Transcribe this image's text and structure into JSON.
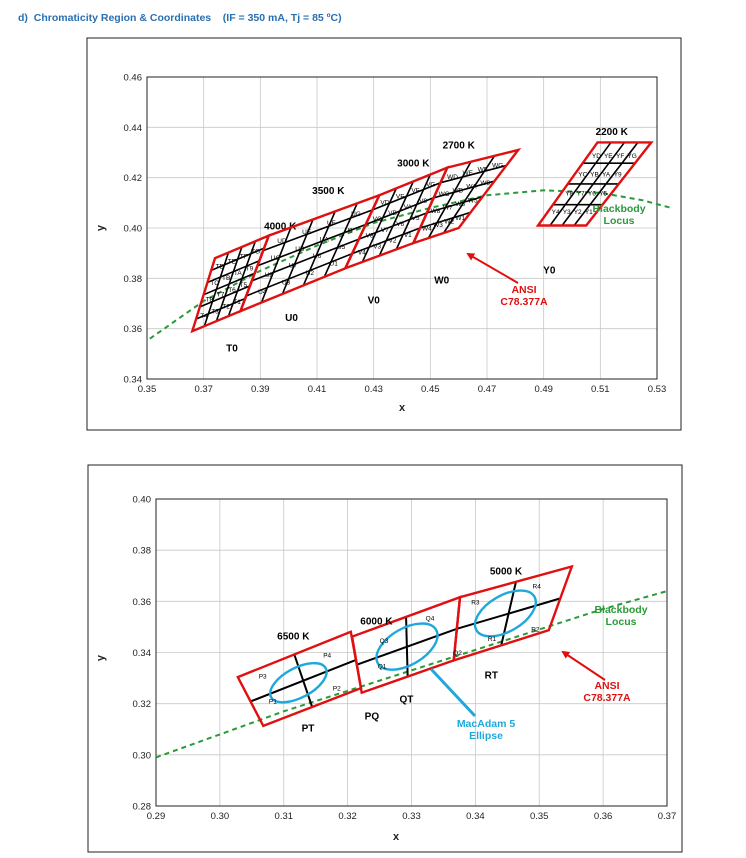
{
  "heading": {
    "prefix": "d)",
    "title": "Chromaticity Region & Coordinates",
    "conditions": "(IF = 350 mA, Tj = 85 ºC)"
  },
  "colors": {
    "bin_outline": "#e01010",
    "grid_lines": "#000000",
    "blackbody": "#2a9a38",
    "ellipse": "#1fa8dc",
    "arrow": "#e01010"
  },
  "chart_data": [
    {
      "type": "scatter",
      "xlabel": "x",
      "ylabel": "y",
      "xlim": [
        0.35,
        0.53
      ],
      "ylim": [
        0.34,
        0.46
      ],
      "xticks": [
        "0.35",
        "0.37",
        "0.39",
        "0.41",
        "0.43",
        "0.45",
        "0.47",
        "0.49",
        "0.51",
        "0.53"
      ],
      "yticks": [
        "0.34",
        "0.36",
        "0.38",
        "0.40",
        "0.42",
        "0.44",
        "0.46"
      ],
      "grid": true,
      "blackbody_locus": {
        "label": "Blackbody Locus",
        "line1": "Blackbody",
        "line2": "Locus",
        "points": [
          [
            0.351,
            0.356
          ],
          [
            0.37,
            0.371
          ],
          [
            0.39,
            0.383
          ],
          [
            0.41,
            0.393
          ],
          [
            0.43,
            0.402
          ],
          [
            0.45,
            0.408
          ],
          [
            0.47,
            0.413
          ],
          [
            0.49,
            0.415
          ],
          [
            0.51,
            0.414
          ],
          [
            0.525,
            0.411
          ],
          [
            0.535,
            0.408
          ]
        ]
      },
      "bins": [
        {
          "cct": "4000 K",
          "label_at": [
            0.397,
            0.3995
          ],
          "corners": [
            [
              0.366,
              0.359
            ],
            [
              0.383,
              0.367
            ],
            [
              0.393,
              0.397
            ],
            [
              0.374,
              0.388
            ]
          ],
          "rows": 6,
          "cols": 4
        },
        {
          "cct": "3500 K",
          "label_at": [
            0.414,
            0.4135
          ],
          "corners": [
            [
              0.383,
              0.367
            ],
            [
              0.42,
              0.384
            ],
            [
              0.432,
              0.413
            ],
            [
              0.393,
              0.397
            ]
          ],
          "rows": 5,
          "cols": 5
        },
        {
          "cct": "3000 K",
          "label_at": [
            0.444,
            0.4245
          ],
          "corners": [
            [
              0.42,
              0.384
            ],
            [
              0.444,
              0.394
            ],
            [
              0.456,
              0.424
            ],
            [
              0.432,
              0.413
            ]
          ],
          "rows": 5,
          "cols": 4
        },
        {
          "cct": "2700 K",
          "label_at": [
            0.46,
            0.4315
          ],
          "corners": [
            [
              0.444,
              0.394
            ],
            [
              0.46,
              0.4
            ],
            [
              0.481,
              0.431
            ],
            [
              0.456,
              0.424
            ]
          ],
          "rows": 5,
          "cols": 3
        },
        {
          "cct": "2200 K",
          "label_at": [
            0.514,
            0.437
          ],
          "corners": [
            [
              0.488,
              0.401
            ],
            [
              0.505,
              0.401
            ],
            [
              0.528,
              0.434
            ],
            [
              0.509,
              0.434
            ]
          ],
          "rows": 4,
          "cols": 4
        }
      ],
      "cell_labels": [
        "TD",
        "TE",
        "TF",
        "TG",
        "TC",
        "TB",
        "TA",
        "T9",
        "T8",
        "T7",
        "T6",
        "T5",
        "T4",
        "T3",
        "T2",
        "T1",
        "UD",
        "UE",
        "UF",
        "UG",
        "UC",
        "UB",
        "UA",
        "U9",
        "U8",
        "U7",
        "U6",
        "U5",
        "U4",
        "U3",
        "U2",
        "U1",
        "VD",
        "VE",
        "VF",
        "VG",
        "VC",
        "VB",
        "VA",
        "V9",
        "V8",
        "V7",
        "V6",
        "V5",
        "V4",
        "V3",
        "V2",
        "V1",
        "WD",
        "WE",
        "WF",
        "WG",
        "WC",
        "WB",
        "WA",
        "W9",
        "W8",
        "W7",
        "W6",
        "W5",
        "W4",
        "W3",
        "W2",
        "W1",
        "YD",
        "YE",
        "YF",
        "YG",
        "YC",
        "YB",
        "YA",
        "Y9",
        "Y8",
        "Y7",
        "Y6",
        "Y5",
        "Y4",
        "Y3",
        "Y2",
        "Y1"
      ],
      "region_labels": [
        {
          "text": "T0",
          "x": 0.38,
          "y": 0.351
        },
        {
          "text": "U0",
          "x": 0.401,
          "y": 0.363
        },
        {
          "text": "V0",
          "x": 0.43,
          "y": 0.37
        },
        {
          "text": "W0",
          "x": 0.454,
          "y": 0.378
        },
        {
          "text": "Y0",
          "x": 0.492,
          "y": 0.382
        }
      ],
      "ansi": {
        "line1": "ANSI",
        "line2": "C78.377A"
      }
    },
    {
      "type": "scatter",
      "xlabel": "x",
      "ylabel": "y",
      "xlim": [
        0.29,
        0.37
      ],
      "ylim": [
        0.28,
        0.4
      ],
      "xticks": [
        "0.29",
        "0.30",
        "0.31",
        "0.32",
        "0.33",
        "0.34",
        "0.35",
        "0.36",
        "0.37"
      ],
      "yticks": [
        "0.28",
        "0.30",
        "0.32",
        "0.34",
        "0.36",
        "0.38",
        "0.40"
      ],
      "grid": true,
      "blackbody_locus": {
        "label": "Blackbody Locus",
        "line1": "Blackbody",
        "line2": "Locus",
        "points": [
          [
            0.29,
            0.299
          ],
          [
            0.3,
            0.308
          ],
          [
            0.31,
            0.317
          ],
          [
            0.32,
            0.325
          ],
          [
            0.33,
            0.333
          ],
          [
            0.34,
            0.341
          ],
          [
            0.35,
            0.349
          ],
          [
            0.36,
            0.357
          ],
          [
            0.37,
            0.364
          ]
        ]
      },
      "bins": [
        {
          "cct": "6500 K",
          "label_at": [
            0.3115,
            0.345
          ],
          "corners": [
            [
              0.3028,
              0.3304
            ],
            [
              0.3068,
              0.3113
            ],
            [
              0.3221,
              0.3261
            ],
            [
              0.3205,
              0.3481
            ]
          ],
          "center": [
            0.3123,
            0.3282
          ],
          "a": 0.00484,
          "b": 0.00233,
          "angle": 28
        },
        {
          "cct": "6000 K",
          "label_at": [
            0.3245,
            0.351
          ],
          "corners": [
            [
              0.3207,
              0.3462
            ],
            [
              0.3222,
              0.3243
            ],
            [
              0.3366,
              0.3369
            ],
            [
              0.3376,
              0.3616
            ]
          ],
          "center": [
            0.3293,
            0.3423
          ],
          "a": 0.00526,
          "b": 0.00286,
          "angle": 30
        },
        {
          "cct": "5000 K",
          "label_at": [
            0.3448,
            0.3704
          ],
          "corners": [
            [
              0.3376,
              0.3616
            ],
            [
              0.3366,
              0.3369
            ],
            [
              0.3515,
              0.3487
            ],
            [
              0.3551,
              0.3736
            ]
          ],
          "center": [
            0.3447,
            0.3553
          ],
          "a": 0.00525,
          "b": 0.00282,
          "angle": 30
        }
      ],
      "sub_bins": [
        {
          "text": "P1",
          "x": 0.3083,
          "y": 0.32
        },
        {
          "text": "P2",
          "x": 0.3183,
          "y": 0.3252
        },
        {
          "text": "P3",
          "x": 0.3067,
          "y": 0.3298
        },
        {
          "text": "P4",
          "x": 0.3168,
          "y": 0.338
        },
        {
          "text": "Q1",
          "x": 0.3254,
          "y": 0.3337
        },
        {
          "text": "Q2",
          "x": 0.3372,
          "y": 0.339
        },
        {
          "text": "Q3",
          "x": 0.3257,
          "y": 0.3438
        },
        {
          "text": "Q4",
          "x": 0.3329,
          "y": 0.3526
        },
        {
          "text": "R1",
          "x": 0.3426,
          "y": 0.3444
        },
        {
          "text": "R2",
          "x": 0.3494,
          "y": 0.3483
        },
        {
          "text": "R3",
          "x": 0.34,
          "y": 0.3588
        },
        {
          "text": "R4",
          "x": 0.3496,
          "y": 0.365
        }
      ],
      "region_labels": [
        {
          "text": "PT",
          "x": 0.3138,
          "y": 0.3092
        },
        {
          "text": "PQ",
          "x": 0.3238,
          "y": 0.3138
        },
        {
          "text": "QT",
          "x": 0.3292,
          "y": 0.3205
        },
        {
          "text": "RT",
          "x": 0.3425,
          "y": 0.3298
        }
      ],
      "ellipse_label": {
        "line1": "MacAdam 5",
        "line2": "Ellipse"
      },
      "ansi": {
        "line1": "ANSI",
        "line2": "C78.377A"
      }
    }
  ]
}
